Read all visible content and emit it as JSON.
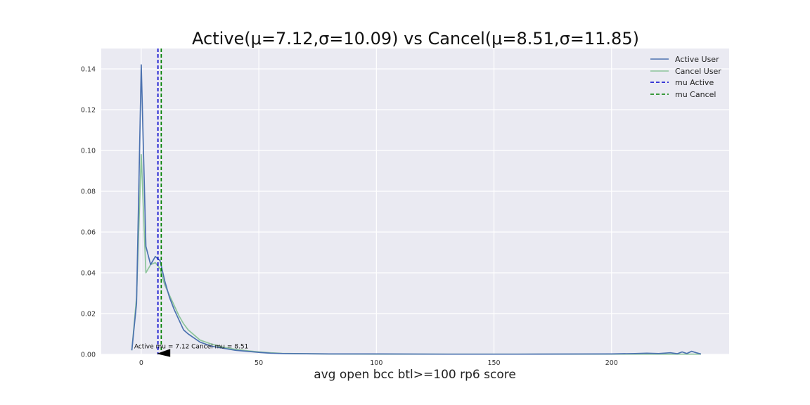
{
  "chart_data": {
    "type": "line",
    "title": "Active(μ=7.12,σ=10.09) vs Cancel(μ=8.51,σ=11.85)",
    "xlabel": "avg open bcc btl>=100 rp6 score",
    "ylabel": "",
    "xlim": [
      -17,
      250
    ],
    "ylim": [
      0,
      0.15
    ],
    "x_ticks": [
      0,
      50,
      100,
      150,
      200
    ],
    "y_ticks": [
      0.0,
      0.02,
      0.04,
      0.06,
      0.08,
      0.1,
      0.12,
      0.14
    ],
    "x_tick_labels": [
      "0",
      "50",
      "100",
      "150",
      "200"
    ],
    "y_tick_labels": [
      "0.00",
      "0.02",
      "0.04",
      "0.06",
      "0.08",
      "0.10",
      "0.12",
      "0.14"
    ],
    "grid": true,
    "legend_position": "top-right",
    "series": [
      {
        "name": "Active User",
        "color": "#4c72b0",
        "x": [
          -4,
          -2,
          0,
          2,
          4,
          6,
          8,
          10,
          12,
          14,
          16,
          18,
          20,
          25,
          30,
          35,
          40,
          45,
          50,
          55,
          60,
          70,
          80,
          100,
          130,
          160,
          200,
          210,
          215,
          220,
          225,
          228,
          230,
          232,
          234,
          236,
          238
        ],
        "y": [
          0.002,
          0.025,
          0.142,
          0.053,
          0.044,
          0.048,
          0.046,
          0.036,
          0.028,
          0.022,
          0.017,
          0.012,
          0.01,
          0.006,
          0.004,
          0.003,
          0.002,
          0.0015,
          0.001,
          0.0006,
          0.0004,
          0.0003,
          0.0002,
          0.0002,
          0.0001,
          0.0001,
          0.0002,
          0.0004,
          0.0006,
          0.0004,
          0.0008,
          0.0003,
          0.0012,
          0.0004,
          0.0015,
          0.0008,
          0.0002
        ]
      },
      {
        "name": "Cancel User",
        "color": "#8dc59b",
        "x": [
          -4,
          -2,
          0,
          2,
          4,
          6,
          8,
          10,
          12,
          14,
          16,
          18,
          20,
          25,
          30,
          35,
          40,
          45,
          50,
          55,
          60,
          70,
          80,
          100,
          130,
          160,
          200,
          238
        ],
        "y": [
          0.002,
          0.028,
          0.098,
          0.04,
          0.044,
          0.045,
          0.042,
          0.034,
          0.029,
          0.024,
          0.019,
          0.015,
          0.012,
          0.007,
          0.005,
          0.0035,
          0.0025,
          0.0018,
          0.0012,
          0.0008,
          0.0005,
          0.0003,
          0.0002,
          0.0001,
          0.0001,
          0.0001,
          0.0001,
          0.0001
        ]
      }
    ],
    "mean_lines": [
      {
        "name": "mu Active",
        "x": 7.12,
        "color": "#0000cc",
        "style": "dashed"
      },
      {
        "name": "mu Cancel",
        "x": 8.51,
        "color": "#008000",
        "style": "dashed"
      }
    ],
    "annotation": {
      "text": "Active mu = 7.12 Cancel mu = 8.51",
      "text_x": -3,
      "text_y": 0.003,
      "arrow_to_x": 7.12,
      "arrow_to_y": 0.0
    }
  }
}
